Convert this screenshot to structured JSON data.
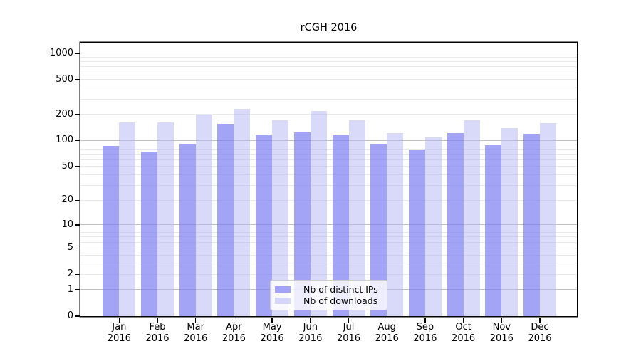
{
  "figure": {
    "title": "rCGH 2016"
  },
  "chart_data": {
    "type": "bar",
    "title": "rCGH 2016",
    "categories": [
      "Jan 2016",
      "Feb 2016",
      "Mar 2016",
      "Apr 2016",
      "May 2016",
      "Jun 2016",
      "Jul 2016",
      "Aug 2016",
      "Sep 2016",
      "Oct 2016",
      "Nov 2016",
      "Dec 2016"
    ],
    "month_labels": [
      "Jan",
      "Feb",
      "Mar",
      "Apr",
      "May",
      "Jun",
      "Jul",
      "Aug",
      "Sep",
      "Oct",
      "Nov",
      "Dec"
    ],
    "year_label": "2016",
    "series": [
      {
        "name": "Nb of distinct IPs",
        "color": "rgba(125,125,243,0.7)",
        "values": [
          87,
          75,
          92,
          156,
          118,
          125,
          115,
          92,
          79,
          121,
          89,
          120
        ]
      },
      {
        "name": "Nb of downloads",
        "color": "rgba(180,180,246,0.5)",
        "values": [
          163,
          163,
          199,
          232,
          172,
          219,
          171,
          122,
          108,
          172,
          139,
          158
        ]
      }
    ],
    "xlabel": "",
    "ylabel": "",
    "y_scale": "log10(value+1)",
    "y_ticks": [
      0,
      1,
      2,
      5,
      10,
      20,
      50,
      100,
      200,
      500,
      1000
    ],
    "ylim": [
      0,
      1325
    ],
    "grid": "horizontal; light minor lines at log positions, darker lines at 1,10,100,1000",
    "legend_position": "lower center inside plot",
    "colors": {
      "grid_minor": "#e9e9e9",
      "grid_major": "#c1c1c1",
      "axis": "#000000",
      "background": "#ffffff"
    }
  }
}
